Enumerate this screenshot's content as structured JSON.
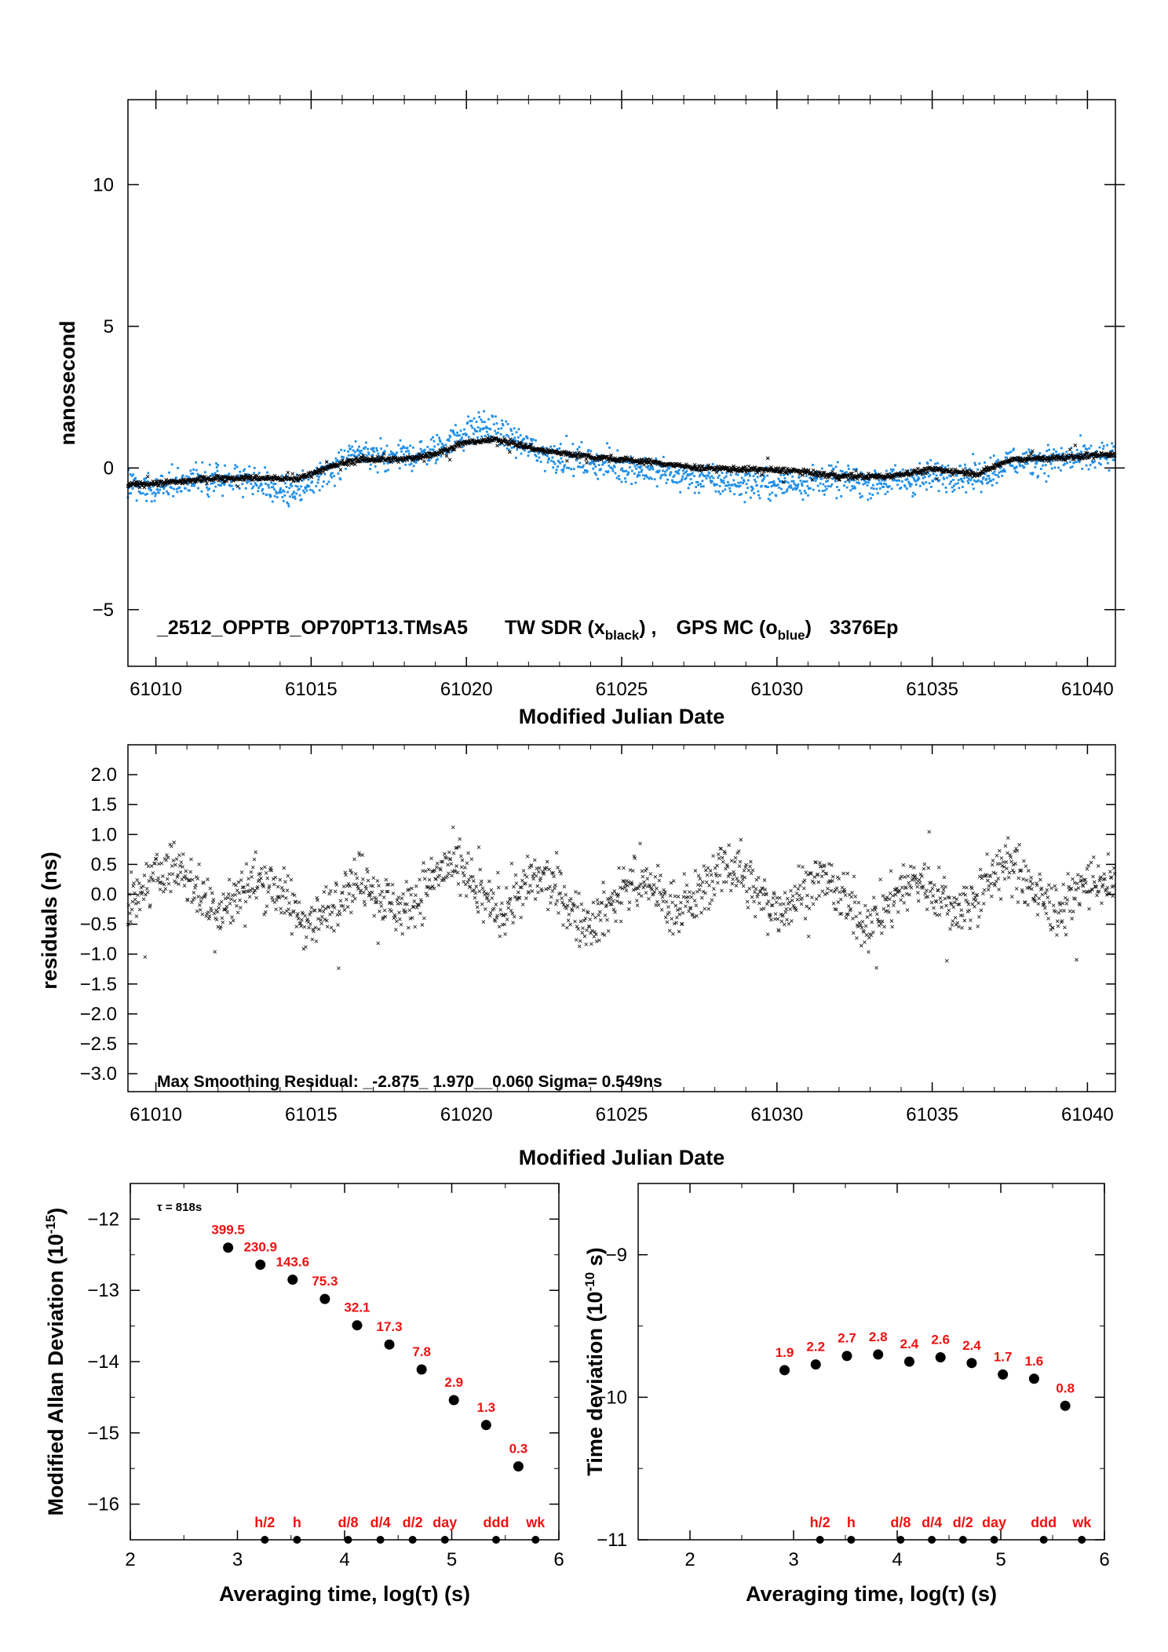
{
  "chart_data": [
    {
      "type": "scatter",
      "name_note": "",
      "annotation": {
        "prefix": "_2512_OPPTB_OP70PT13.TMsA5",
        "tw_text": "TW SDR (x",
        "tw_sub": "black",
        "tw_close": ") ,",
        "gps_text": "GPS MC (o",
        "gps_sub": "blue",
        "gps_close": ")",
        "suffix": "3376Ep"
      },
      "xlabel": "Modified Julian Date",
      "ylabel": "nanosecond",
      "xlim": [
        61009.1,
        61040.9
      ],
      "ylim": [
        -7,
        13
      ],
      "xticks": [
        "61010",
        "61015",
        "61020",
        "61025",
        "61030",
        "61035",
        "61040"
      ],
      "yticks": [
        "−5",
        "0",
        "5",
        "10"
      ],
      "colors": {
        "tw": "#000000",
        "gps": "#1e8ee8"
      },
      "series": [
        {
          "name": "TW SDR",
          "marker": "x",
          "trend": [
            [
              61009.1,
              -0.6
            ],
            [
              61010.5,
              -0.5
            ],
            [
              61012,
              -0.35
            ],
            [
              61013.3,
              -0.35
            ],
            [
              61014.5,
              -0.4
            ],
            [
              61015.5,
              0.0
            ],
            [
              61016.5,
              0.3
            ],
            [
              61018,
              0.3
            ],
            [
              61019,
              0.5
            ],
            [
              61020,
              0.9
            ],
            [
              61021,
              1.0
            ],
            [
              61022.5,
              0.6
            ],
            [
              61024,
              0.4
            ],
            [
              61026,
              0.2
            ],
            [
              61027.5,
              0.0
            ],
            [
              61029,
              -0.05
            ],
            [
              61030.5,
              -0.1
            ],
            [
              61032,
              -0.3
            ],
            [
              61033.5,
              -0.3
            ],
            [
              61035,
              -0.05
            ],
            [
              61036,
              -0.15
            ],
            [
              61036.5,
              -0.2
            ],
            [
              61037.5,
              0.3
            ],
            [
              61039,
              0.35
            ],
            [
              61040.9,
              0.5
            ]
          ]
        },
        {
          "name": "GPS MC",
          "marker": "o",
          "trend": [
            [
              61009.1,
              -0.7
            ],
            [
              61010,
              -0.7
            ],
            [
              61011.5,
              -0.35
            ],
            [
              61012.5,
              -0.4
            ],
            [
              61013.5,
              -0.6
            ],
            [
              61014.5,
              -0.9
            ],
            [
              61015.5,
              -0.1
            ],
            [
              61016.5,
              0.5
            ],
            [
              61018,
              0.4
            ],
            [
              61019,
              0.6
            ],
            [
              61019.5,
              1.0
            ],
            [
              61020.5,
              1.5
            ],
            [
              61021.5,
              1.0
            ],
            [
              61022.5,
              0.5
            ],
            [
              61024,
              0.2
            ],
            [
              61025.5,
              0.0
            ],
            [
              61027,
              -0.3
            ],
            [
              61028.5,
              -0.5
            ],
            [
              61030,
              -0.6
            ],
            [
              61031.5,
              -0.4
            ],
            [
              61033,
              -0.5
            ],
            [
              61034.5,
              -0.4
            ],
            [
              61035.5,
              -0.2
            ],
            [
              61036.5,
              -0.3
            ],
            [
              61037.5,
              0.2
            ],
            [
              61039,
              0.3
            ],
            [
              61040.9,
              0.4
            ]
          ]
        }
      ]
    },
    {
      "type": "scatter",
      "xlabel": "Modified Julian Date",
      "ylabel": "residuals (ns)",
      "xlim": [
        61009.1,
        61040.9
      ],
      "ylim": [
        -3.3,
        2.5
      ],
      "xticks": [
        "61010",
        "61015",
        "61020",
        "61025",
        "61030",
        "61035",
        "61040"
      ],
      "yticks": [
        "−3.0",
        "−2.5",
        "−2.0",
        "−1.5",
        "−1.0",
        "−0.5",
        "0.0",
        "0.5",
        "1.0",
        "1.5",
        "2.0"
      ],
      "annotation": "Max Smoothing Residual: _-2.875_ 1.970__0.060  Sigma= 0.549ns",
      "stats": {
        "min": -2.875,
        "max": 1.97,
        "mean": 0.06,
        "sigma": 0.549
      }
    },
    {
      "type": "scatter",
      "xlabel": "Averaging time, log(τ) (s)",
      "ylabel": "Modified Allan Deviation (10",
      "ylabel_sup": "-15",
      "ylabel_end": ")",
      "xlim": [
        2,
        6
      ],
      "ylim": [
        -16.5,
        -11.5
      ],
      "xticks": [
        "2",
        "3",
        "4",
        "5",
        "6"
      ],
      "yticks": [
        "−16",
        "−15",
        "−14",
        "−13",
        "−12"
      ],
      "tau_note": "τ = 818s",
      "points": [
        {
          "x": 2.913,
          "y": -12.4,
          "label": "399.5"
        },
        {
          "x": 3.214,
          "y": -12.64,
          "label": "230.9"
        },
        {
          "x": 3.515,
          "y": -12.85,
          "label": "143.6"
        },
        {
          "x": 3.816,
          "y": -13.12,
          "label": "75.3"
        },
        {
          "x": 4.117,
          "y": -13.49,
          "label": "32.1"
        },
        {
          "x": 4.418,
          "y": -13.76,
          "label": "17.3"
        },
        {
          "x": 4.719,
          "y": -14.11,
          "label": "7.8"
        },
        {
          "x": 5.02,
          "y": -14.54,
          "label": "2.9"
        },
        {
          "x": 5.321,
          "y": -14.89,
          "label": "1.3"
        },
        {
          "x": 5.622,
          "y": -15.47,
          "label": "0.3"
        }
      ],
      "markers": [
        {
          "x": 3.255,
          "label": "h/2"
        },
        {
          "x": 3.556,
          "label": "h"
        },
        {
          "x": 4.033,
          "label": "d/8"
        },
        {
          "x": 4.334,
          "label": "d/4"
        },
        {
          "x": 4.635,
          "label": "d/2"
        },
        {
          "x": 4.936,
          "label": "day"
        },
        {
          "x": 5.414,
          "label": "ddd"
        },
        {
          "x": 5.782,
          "label": "wk"
        }
      ]
    },
    {
      "type": "scatter",
      "xlabel": "Averaging time, log(τ) (s)",
      "ylabel": "Time deviation (10",
      "ylabel_sup": "-10",
      "ylabel_end": " s)",
      "xlim": [
        1.5,
        6
      ],
      "ylim": [
        -11,
        -8.5
      ],
      "xticks": [
        "2",
        "3",
        "4",
        "5",
        "6"
      ],
      "yticks": [
        "−11",
        "−10",
        "−9"
      ],
      "points": [
        {
          "x": 2.913,
          "y": -9.81,
          "label": "1.9"
        },
        {
          "x": 3.214,
          "y": -9.77,
          "label": "2.2"
        },
        {
          "x": 3.515,
          "y": -9.71,
          "label": "2.7"
        },
        {
          "x": 3.816,
          "y": -9.7,
          "label": "2.8"
        },
        {
          "x": 4.117,
          "y": -9.75,
          "label": "2.4"
        },
        {
          "x": 4.418,
          "y": -9.72,
          "label": "2.6"
        },
        {
          "x": 4.719,
          "y": -9.76,
          "label": "2.4"
        },
        {
          "x": 5.02,
          "y": -9.84,
          "label": "1.7"
        },
        {
          "x": 5.321,
          "y": -9.87,
          "label": "1.6"
        },
        {
          "x": 5.622,
          "y": -10.06,
          "label": "0.8"
        }
      ],
      "markers": [
        {
          "x": 3.255,
          "label": "h/2"
        },
        {
          "x": 3.556,
          "label": "h"
        },
        {
          "x": 4.033,
          "label": "d/8"
        },
        {
          "x": 4.334,
          "label": "d/4"
        },
        {
          "x": 4.635,
          "label": "d/2"
        },
        {
          "x": 4.936,
          "label": "day"
        },
        {
          "x": 5.414,
          "label": "ddd"
        },
        {
          "x": 5.782,
          "label": "wk"
        }
      ]
    }
  ]
}
